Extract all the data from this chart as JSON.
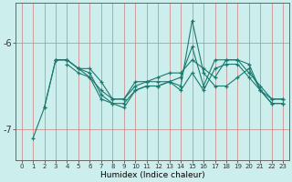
{
  "background_color": "#cceeed",
  "line_color": "#1a7a6e",
  "grid_color": "#d08080",
  "xlabel": "Humidex (Indice chaleur)",
  "xlim": [
    -0.5,
    23.5
  ],
  "ylim": [
    -7.35,
    -5.55
  ],
  "yticks": [
    -7,
    -6
  ],
  "xticks": [
    0,
    1,
    2,
    3,
    4,
    5,
    6,
    7,
    8,
    9,
    10,
    11,
    12,
    13,
    14,
    15,
    16,
    17,
    18,
    19,
    20,
    21,
    22,
    23
  ],
  "series": [
    {
      "x": [
        1,
        2,
        3,
        4,
        5,
        6,
        7,
        8,
        9,
        10,
        11,
        12,
        13,
        14,
        15,
        16,
        17,
        18,
        19,
        20,
        21,
        22,
        23
      ],
      "y": [
        -7.1,
        -6.75,
        -6.2,
        -6.2,
        -6.3,
        -6.4,
        -6.55,
        -6.65,
        -6.65,
        -6.45,
        -6.45,
        -6.45,
        -6.45,
        -6.5,
        -5.75,
        -6.35,
        -6.5,
        -6.5,
        -6.4,
        -6.3,
        -6.55,
        -6.7,
        -6.7
      ]
    },
    {
      "x": [
        2,
        3,
        4,
        5,
        6,
        7,
        8,
        9,
        10,
        11,
        12,
        13,
        14,
        15,
        16,
        17,
        18,
        19,
        20,
        21,
        22,
        23
      ],
      "y": [
        -6.75,
        -6.2,
        -6.2,
        -6.3,
        -6.3,
        -6.45,
        -6.65,
        -6.65,
        -6.5,
        -6.45,
        -6.4,
        -6.35,
        -6.35,
        -6.2,
        -6.3,
        -6.4,
        -6.2,
        -6.2,
        -6.25,
        -6.55,
        -6.7,
        -6.7
      ]
    },
    {
      "x": [
        3,
        4,
        5,
        6,
        7,
        8,
        9,
        10,
        11,
        12,
        13,
        14,
        15,
        16,
        17,
        18,
        19,
        20,
        21,
        22,
        23
      ],
      "y": [
        -6.2,
        -6.2,
        -6.3,
        -6.35,
        -6.6,
        -6.7,
        -6.75,
        -6.55,
        -6.5,
        -6.5,
        -6.45,
        -6.4,
        -6.05,
        -6.5,
        -6.2,
        -6.2,
        -6.2,
        -6.35,
        -6.5,
        -6.65,
        -6.65
      ]
    },
    {
      "x": [
        4,
        5,
        6,
        7,
        8,
        9,
        10,
        11,
        12,
        13,
        14,
        15,
        16,
        17,
        18,
        19,
        20,
        21,
        22,
        23
      ],
      "y": [
        -6.25,
        -6.35,
        -6.4,
        -6.65,
        -6.7,
        -6.7,
        -6.55,
        -6.5,
        -6.5,
        -6.45,
        -6.55,
        -6.35,
        -6.55,
        -6.3,
        -6.25,
        -6.25,
        -6.4,
        -6.55,
        -6.65,
        -6.65
      ]
    }
  ]
}
